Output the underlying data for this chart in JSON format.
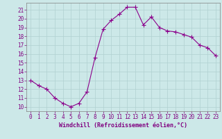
{
  "x": [
    0,
    1,
    2,
    3,
    4,
    5,
    6,
    7,
    8,
    9,
    10,
    11,
    12,
    13,
    14,
    15,
    16,
    17,
    18,
    19,
    20,
    21,
    22,
    23
  ],
  "y": [
    13.0,
    12.4,
    12.0,
    11.0,
    10.4,
    10.0,
    10.4,
    11.7,
    15.6,
    18.8,
    19.8,
    20.5,
    21.3,
    21.3,
    19.3,
    20.2,
    19.0,
    18.6,
    18.5,
    18.2,
    17.9,
    17.0,
    16.7,
    15.8
  ],
  "line_color": "#8b008b",
  "marker": "+",
  "marker_size": 4,
  "marker_linewidth": 0.8,
  "bg_color": "#cce8e8",
  "grid_color": "#b0d0d0",
  "xlabel": "Windchill (Refroidissement éolien,°C)",
  "xlabel_fontsize": 6.0,
  "ylabel_ticks": [
    10,
    11,
    12,
    13,
    14,
    15,
    16,
    17,
    18,
    19,
    20,
    21
  ],
  "xlim": [
    -0.5,
    23.5
  ],
  "ylim": [
    9.5,
    21.8
  ],
  "xticks": [
    0,
    1,
    2,
    3,
    4,
    5,
    6,
    7,
    8,
    9,
    10,
    11,
    12,
    13,
    14,
    15,
    16,
    17,
    18,
    19,
    20,
    21,
    22,
    23
  ],
  "tick_fontsize": 5.5,
  "tick_color": "#800080",
  "line_width": 0.8,
  "spine_color": "#808080"
}
